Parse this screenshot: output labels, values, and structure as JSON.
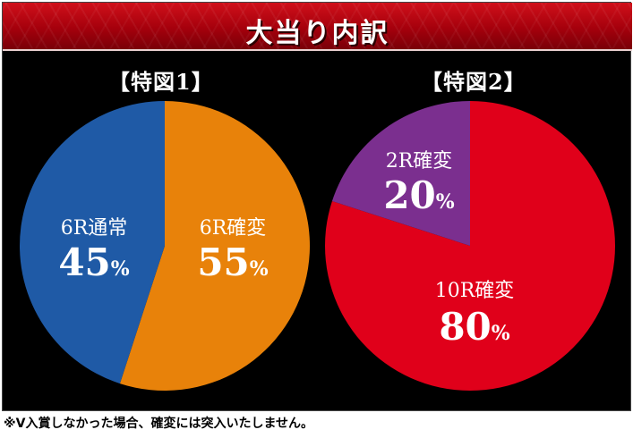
{
  "header": {
    "title": "大当り内訳"
  },
  "footnote": "※V入賞しなかった場合、確変には突入いたしません。",
  "chart_data": [
    {
      "type": "pie",
      "title": "【特図1】",
      "slices": [
        {
          "label": "6R確変",
          "value": 55,
          "value_text": "55",
          "unit": "%",
          "color": "#e8820a"
        },
        {
          "label": "6R通常",
          "value": 45,
          "value_text": "45",
          "unit": "%",
          "color": "#1f5aa6"
        }
      ]
    },
    {
      "type": "pie",
      "title": "【特図2】",
      "slices": [
        {
          "label": "10R確変",
          "value": 80,
          "value_text": "80",
          "unit": "%",
          "color": "#e0001a"
        },
        {
          "label": "2R確変",
          "value": 20,
          "value_text": "20",
          "unit": "%",
          "color": "#7b2f8f"
        }
      ]
    }
  ]
}
